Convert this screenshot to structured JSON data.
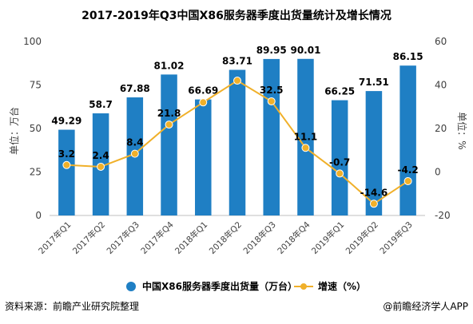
{
  "chart_data": {
    "type": "bar",
    "title": "2017-2019年Q3中国X86服务器季度出货量统计及增长情况",
    "categories": [
      "2017年Q1",
      "2017年Q2",
      "2017年Q3",
      "2017年Q4",
      "2018年Q1",
      "2018年Q2",
      "2018年Q3",
      "2018年Q4",
      "2019年Q1",
      "2019年Q2",
      "2019年Q3"
    ],
    "series": [
      {
        "name": "中国X86服务器季度出货量（万台）",
        "type": "bar",
        "axis": "left",
        "values": [
          49.29,
          58.7,
          67.88,
          81.02,
          66.69,
          83.71,
          89.95,
          90.01,
          66.25,
          71.51,
          86.15
        ]
      },
      {
        "name": "增速（%）",
        "type": "line",
        "axis": "right",
        "values": [
          3.2,
          2.4,
          8.4,
          21.8,
          32.0,
          42.0,
          32.5,
          11.1,
          -0.7,
          -14.6,
          -4.2
        ],
        "labels": [
          "3.2",
          "2.4",
          "8.4",
          "21.8",
          "",
          "",
          "32.5",
          "11.1",
          "-0.7",
          "-14.6",
          "-4.2"
        ]
      }
    ],
    "ylabel": "单位：万台",
    "y2label": "单位：%",
    "ylim": [
      0,
      100
    ],
    "y2lim": [
      -20,
      60
    ],
    "yticks": [
      "0",
      "25",
      "50",
      "75",
      "100"
    ],
    "y2ticks": [
      "-20",
      "0",
      "20",
      "40",
      "60"
    ],
    "grid": false,
    "legend": "bottom",
    "colors": {
      "bar": "#1f7fc4",
      "line": "#f0b02a"
    }
  },
  "footer": {
    "source": "资料来源：前瞻产业研究院整理",
    "brand": "@前瞻经济学人APP"
  }
}
